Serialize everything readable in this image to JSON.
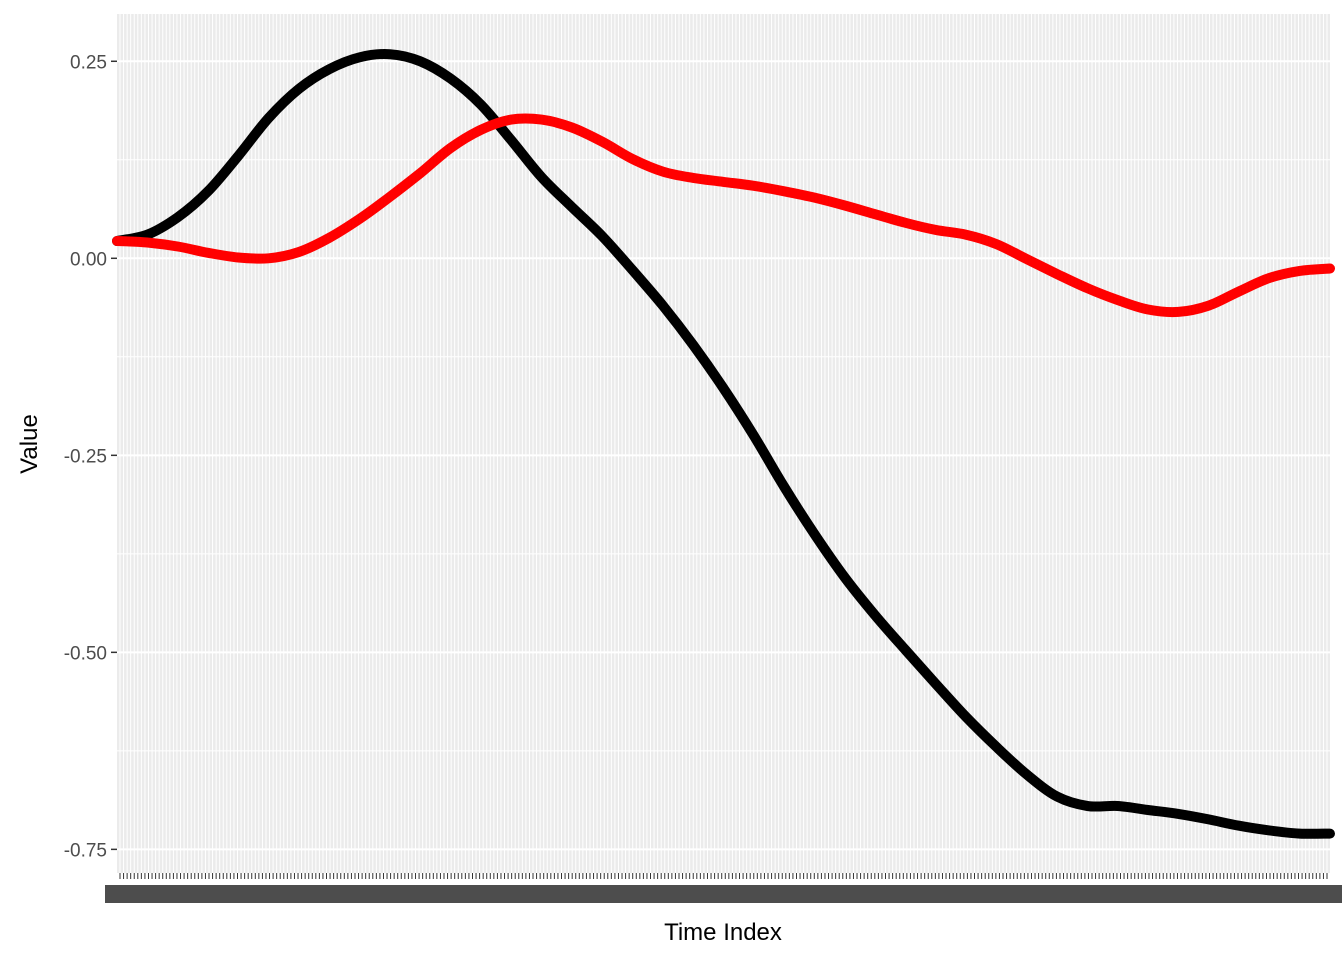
{
  "chart_data": {
    "type": "line",
    "xlabel": "Time Index",
    "ylabel": "Value",
    "ylim": [
      -0.78,
      0.31
    ],
    "xlim": [
      0,
      1
    ],
    "grid": true,
    "x_tick_labels_legible": false,
    "y_ticks": [
      0.25,
      0.0,
      -0.25,
      -0.5,
      -0.75
    ],
    "y_tick_labels": [
      "0.25",
      "0.00",
      "-0.25",
      "-0.50",
      "-0.75"
    ],
    "series": [
      {
        "color": "#000000",
        "points": [
          [
            0.0,
            0.022
          ],
          [
            0.025,
            0.03
          ],
          [
            0.05,
            0.052
          ],
          [
            0.075,
            0.085
          ],
          [
            0.1,
            0.13
          ],
          [
            0.125,
            0.178
          ],
          [
            0.15,
            0.215
          ],
          [
            0.175,
            0.24
          ],
          [
            0.2,
            0.255
          ],
          [
            0.225,
            0.259
          ],
          [
            0.25,
            0.25
          ],
          [
            0.275,
            0.228
          ],
          [
            0.3,
            0.195
          ],
          [
            0.325,
            0.15
          ],
          [
            0.35,
            0.103
          ],
          [
            0.375,
            0.065
          ],
          [
            0.4,
            0.028
          ],
          [
            0.425,
            -0.015
          ],
          [
            0.45,
            -0.06
          ],
          [
            0.475,
            -0.11
          ],
          [
            0.5,
            -0.165
          ],
          [
            0.525,
            -0.225
          ],
          [
            0.55,
            -0.29
          ],
          [
            0.575,
            -0.35
          ],
          [
            0.6,
            -0.405
          ],
          [
            0.625,
            -0.453
          ],
          [
            0.65,
            -0.497
          ],
          [
            0.675,
            -0.54
          ],
          [
            0.7,
            -0.582
          ],
          [
            0.725,
            -0.62
          ],
          [
            0.75,
            -0.655
          ],
          [
            0.775,
            -0.683
          ],
          [
            0.8,
            -0.695
          ],
          [
            0.825,
            -0.695
          ],
          [
            0.85,
            -0.7
          ],
          [
            0.875,
            -0.705
          ],
          [
            0.9,
            -0.712
          ],
          [
            0.925,
            -0.72
          ],
          [
            0.95,
            -0.726
          ],
          [
            0.975,
            -0.73
          ],
          [
            1.0,
            -0.73
          ]
        ]
      },
      {
        "color": "#ff0000",
        "points": [
          [
            0.0,
            0.022
          ],
          [
            0.025,
            0.02
          ],
          [
            0.05,
            0.015
          ],
          [
            0.075,
            0.007
          ],
          [
            0.1,
            0.001
          ],
          [
            0.125,
            0.0
          ],
          [
            0.15,
            0.008
          ],
          [
            0.175,
            0.026
          ],
          [
            0.2,
            0.05
          ],
          [
            0.225,
            0.078
          ],
          [
            0.25,
            0.108
          ],
          [
            0.275,
            0.14
          ],
          [
            0.3,
            0.163
          ],
          [
            0.325,
            0.176
          ],
          [
            0.35,
            0.176
          ],
          [
            0.375,
            0.166
          ],
          [
            0.4,
            0.148
          ],
          [
            0.425,
            0.126
          ],
          [
            0.45,
            0.11
          ],
          [
            0.475,
            0.102
          ],
          [
            0.5,
            0.097
          ],
          [
            0.525,
            0.092
          ],
          [
            0.55,
            0.085
          ],
          [
            0.575,
            0.077
          ],
          [
            0.6,
            0.067
          ],
          [
            0.625,
            0.056
          ],
          [
            0.65,
            0.045
          ],
          [
            0.675,
            0.036
          ],
          [
            0.7,
            0.03
          ],
          [
            0.725,
            0.018
          ],
          [
            0.75,
            -0.001
          ],
          [
            0.775,
            -0.02
          ],
          [
            0.8,
            -0.038
          ],
          [
            0.825,
            -0.053
          ],
          [
            0.85,
            -0.065
          ],
          [
            0.875,
            -0.068
          ],
          [
            0.9,
            -0.06
          ],
          [
            0.925,
            -0.042
          ],
          [
            0.95,
            -0.025
          ],
          [
            0.975,
            -0.016
          ],
          [
            1.0,
            -0.013
          ]
        ]
      }
    ]
  }
}
